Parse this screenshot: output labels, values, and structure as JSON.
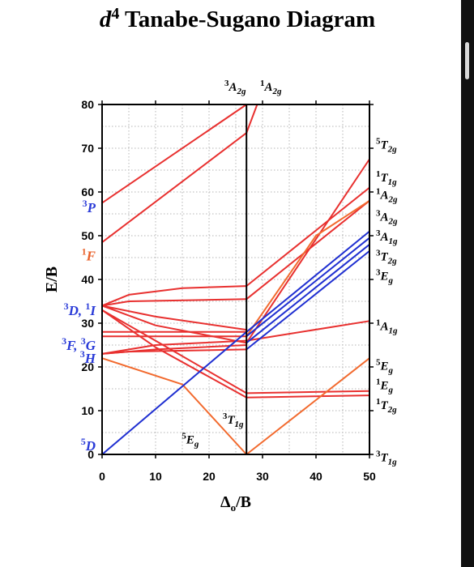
{
  "colors": {
    "red": "#e8302f",
    "orange": "#f26a2e",
    "blue": "#1f2fd1",
    "spin_label_blue": "#2a3bd8",
    "spin_label_orange": "#e9602a",
    "text": "#000000"
  },
  "chart_data": {
    "type": "line",
    "title": "d⁴ Tanabe-Sugano Diagram",
    "xlabel": "Δo/B",
    "ylabel": "E/B",
    "xlim": [
      0,
      50
    ],
    "ylim": [
      0,
      80
    ],
    "xticks": [
      "0",
      "10",
      "20",
      "30",
      "40",
      "50"
    ],
    "yticks": [
      "0",
      "10",
      "20",
      "30",
      "40",
      "50",
      "60",
      "70",
      "80"
    ],
    "grid": true,
    "critical_x": 27,
    "left_terms": [
      {
        "symbol": "D",
        "mult": "5",
        "y": 2,
        "color": "blue"
      },
      {
        "symbol": "H",
        "mult": "3",
        "y": 22,
        "color": "blue"
      },
      {
        "symbol": "F, ",
        "mult": "3",
        "symbol2": "G",
        "mult2": "3",
        "y": 25,
        "color": "blue"
      },
      {
        "symbol": "D, ",
        "mult": "3",
        "symbol2": "I",
        "mult2": "1",
        "y": 33,
        "color": "blue"
      },
      {
        "symbol": "F",
        "mult": "1",
        "y": 45.5,
        "color": "orange"
      },
      {
        "symbol": "P",
        "mult": "3",
        "y": 56.5,
        "color": "blue"
      }
    ],
    "top_labels": [
      {
        "mult": "3",
        "base": "A",
        "sub": "2g"
      },
      {
        "mult": "1",
        "base": "A",
        "sub": "2g"
      }
    ],
    "right_labels": [
      {
        "mult": "5",
        "base": "T",
        "sub": "2g",
        "y": 71
      },
      {
        "mult": "1",
        "base": "T",
        "sub": "1g",
        "y": 63.5
      },
      {
        "mult": "1",
        "base": "A",
        "sub": "2g",
        "y": 59.5
      },
      {
        "mult": "3",
        "base": "A",
        "sub": "2g",
        "y": 54.5
      },
      {
        "mult": "3",
        "base": "A",
        "sub": "1g",
        "y": 50
      },
      {
        "mult": "3",
        "base": "T",
        "sub": "2g",
        "y": 45.5
      },
      {
        "mult": "3",
        "base": "E",
        "sub": "g",
        "y": 41
      },
      {
        "mult": "1",
        "base": "A",
        "sub": "1g",
        "y": 29.5
      },
      {
        "mult": "5",
        "base": "E",
        "sub": "g",
        "y": 20.5
      },
      {
        "mult": "1",
        "base": "E",
        "sub": "g",
        "y": 16
      },
      {
        "mult": "1",
        "base": "T",
        "sub": "2g",
        "y": 11.5
      },
      {
        "mult": "3",
        "base": "T",
        "sub": "1g",
        "y": -0.5
      }
    ],
    "inner_labels": [
      {
        "mult": "3",
        "base": "T",
        "sub": "1g",
        "x": 24.5,
        "y": 7
      },
      {
        "mult": "5",
        "base": "E",
        "sub": "g",
        "x": 16.5,
        "y": 2.5
      }
    ],
    "series": [
      {
        "color": "red",
        "points": [
          [
            0,
            57.5
          ],
          [
            27,
            80
          ]
        ]
      },
      {
        "color": "red",
        "points": [
          [
            0,
            48.5
          ],
          [
            27,
            73.5
          ],
          [
            29,
            80
          ]
        ]
      },
      {
        "color": "red",
        "points": [
          [
            0,
            34
          ],
          [
            5,
            36.5
          ],
          [
            15,
            38
          ],
          [
            27,
            38.5
          ]
        ]
      },
      {
        "color": "red",
        "points": [
          [
            0,
            34
          ],
          [
            5,
            35
          ],
          [
            27,
            35.5
          ]
        ]
      },
      {
        "color": "red",
        "points": [
          [
            0,
            34
          ],
          [
            10,
            31.5
          ],
          [
            27,
            28.5
          ]
        ]
      },
      {
        "color": "red",
        "points": [
          [
            0,
            34
          ],
          [
            10,
            29.5
          ],
          [
            27,
            25.5
          ]
        ]
      },
      {
        "color": "red",
        "points": [
          [
            0,
            33
          ],
          [
            10,
            26
          ],
          [
            27,
            14
          ]
        ]
      },
      {
        "color": "red",
        "points": [
          [
            0,
            33
          ],
          [
            10,
            24.5
          ],
          [
            27,
            13
          ]
        ]
      },
      {
        "color": "red",
        "points": [
          [
            0,
            28
          ],
          [
            27,
            28
          ]
        ]
      },
      {
        "color": "red",
        "points": [
          [
            0,
            27
          ],
          [
            27,
            27
          ]
        ]
      },
      {
        "color": "red",
        "points": [
          [
            0,
            23
          ],
          [
            10,
            25
          ],
          [
            27,
            26
          ]
        ]
      },
      {
        "color": "red",
        "points": [
          [
            0,
            23
          ],
          [
            10,
            24
          ],
          [
            27,
            25
          ]
        ]
      },
      {
        "color": "red",
        "points": [
          [
            0,
            23
          ],
          [
            5,
            23.5
          ],
          [
            27,
            24
          ]
        ]
      },
      {
        "color": "orange",
        "points": [
          [
            0,
            22
          ],
          [
            15,
            16
          ],
          [
            27,
            0
          ]
        ]
      },
      {
        "color": "blue",
        "points": [
          [
            0,
            0
          ],
          [
            27,
            28
          ]
        ]
      },
      {
        "color": "blue",
        "points": [
          [
            0,
            0
          ],
          [
            50,
            0
          ]
        ]
      },
      {
        "color": "red",
        "points": [
          [
            27,
            38.5
          ],
          [
            50,
            61
          ]
        ]
      },
      {
        "color": "red",
        "points": [
          [
            27,
            35.5
          ],
          [
            50,
            58
          ]
        ]
      },
      {
        "color": "red",
        "points": [
          [
            27,
            25.5
          ],
          [
            50,
            67.5
          ]
        ]
      },
      {
        "color": "red",
        "points": [
          [
            27,
            26
          ],
          [
            50,
            30.5
          ]
        ]
      },
      {
        "color": "red",
        "points": [
          [
            27,
            14
          ],
          [
            50,
            14.5
          ]
        ]
      },
      {
        "color": "red",
        "points": [
          [
            27,
            13
          ],
          [
            50,
            13.5
          ]
        ]
      },
      {
        "color": "orange",
        "points": [
          [
            27,
            0
          ],
          [
            50,
            22
          ]
        ]
      },
      {
        "color": "orange",
        "points": [
          [
            27,
            27
          ],
          [
            40,
            50
          ],
          [
            50,
            58
          ]
        ]
      },
      {
        "color": "blue",
        "points": [
          [
            27,
            28
          ],
          [
            50,
            51
          ]
        ]
      },
      {
        "color": "blue",
        "points": [
          [
            27,
            27
          ],
          [
            50,
            49.5
          ]
        ]
      },
      {
        "color": "blue",
        "points": [
          [
            27,
            25.5
          ],
          [
            50,
            48
          ]
        ]
      },
      {
        "color": "blue",
        "points": [
          [
            27,
            24
          ],
          [
            50,
            46.5
          ]
        ]
      }
    ]
  }
}
